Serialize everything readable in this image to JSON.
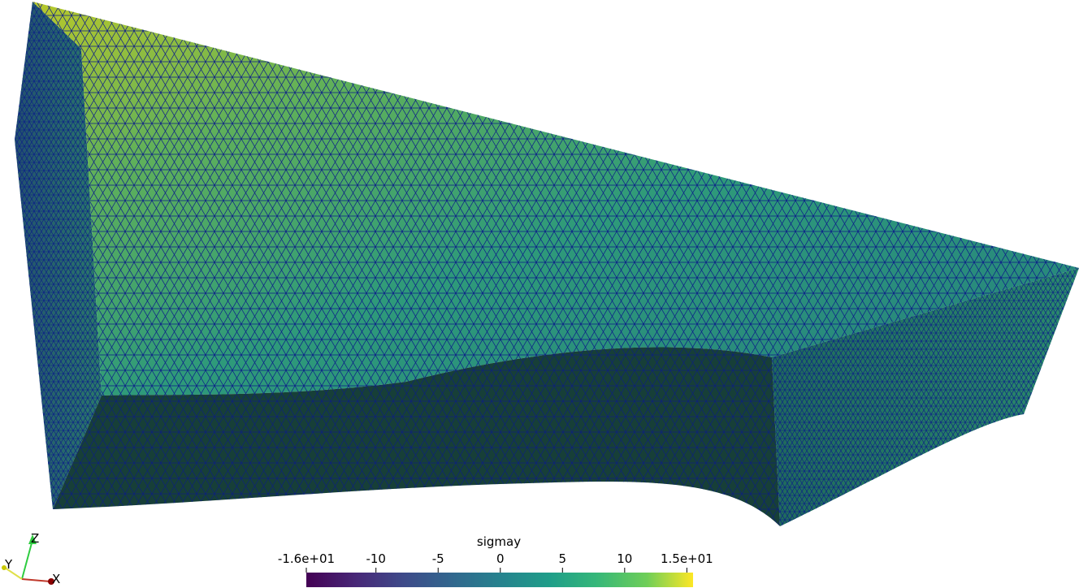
{
  "colorbar": {
    "title": "sigmay",
    "range": [
      -15.6,
      15.5
    ],
    "ticks": [
      {
        "value": -16,
        "label": "-1.6e+01"
      },
      -10,
      -5,
      0,
      5,
      10,
      {
        "value": 15,
        "label": "1.5e+01"
      }
    ]
  },
  "axes": {
    "z": "Z",
    "y": "Y",
    "x": "X"
  }
}
